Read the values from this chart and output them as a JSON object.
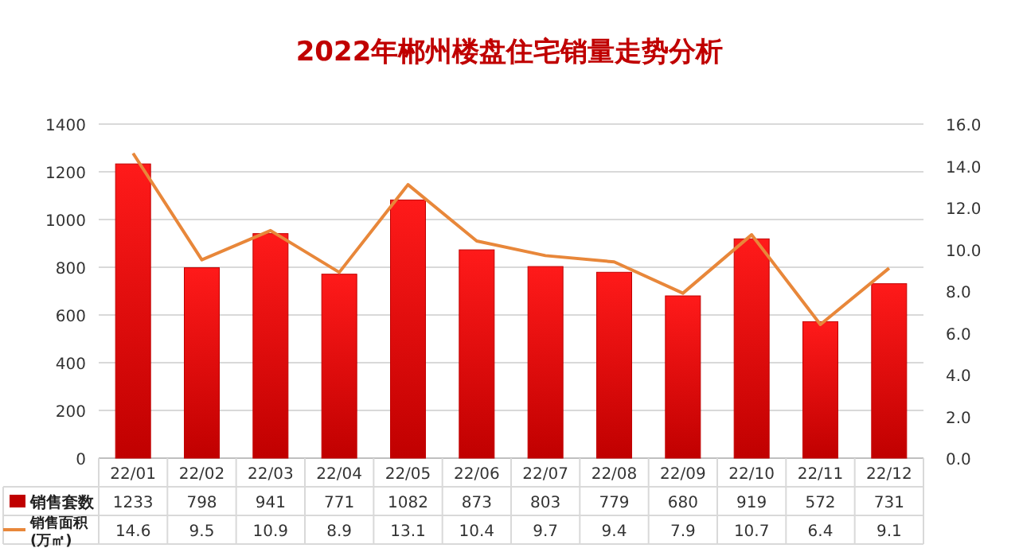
{
  "chart_data": {
    "type": "bar",
    "title": "2022年郴州楼盘住宅销量走势分析",
    "categories": [
      "22/01",
      "22/02",
      "22/03",
      "22/04",
      "22/05",
      "22/06",
      "22/07",
      "22/08",
      "22/09",
      "22/10",
      "22/11",
      "22/12"
    ],
    "series": [
      {
        "name": "销售套数",
        "color": "#c00000",
        "values": [
          1233,
          798,
          941,
          771,
          1082,
          873,
          803,
          779,
          680,
          919,
          572,
          731
        ]
      },
      {
        "name": "销售面积\n(万㎡)",
        "type": "line",
        "axis": "y2",
        "color": "#e8873a",
        "values": [
          14.6,
          9.5,
          10.9,
          8.9,
          13.1,
          10.4,
          9.7,
          9.4,
          7.9,
          10.7,
          6.4,
          9.1
        ]
      }
    ],
    "ylim": [
      0,
      1400
    ],
    "yticks": [
      0,
      200,
      400,
      600,
      800,
      1000,
      1200,
      1400
    ],
    "y2lim": [
      0,
      16
    ],
    "y2ticks": [
      {
        "value": 0,
        "label": "0.0"
      },
      {
        "value": 2,
        "label": "2.0"
      },
      {
        "value": 4,
        "label": "4.0"
      },
      {
        "value": 6,
        "label": "6.0"
      },
      {
        "value": 8,
        "label": "8.0"
      },
      {
        "value": 10,
        "label": "10.0"
      },
      {
        "value": 12,
        "label": "12.0"
      },
      {
        "value": 14,
        "label": "14.0"
      },
      {
        "value": 16,
        "label": "16.0"
      }
    ],
    "grid": "y",
    "legend": "bottom",
    "data_labels": true,
    "marker": "none",
    "line_style": "solid"
  }
}
